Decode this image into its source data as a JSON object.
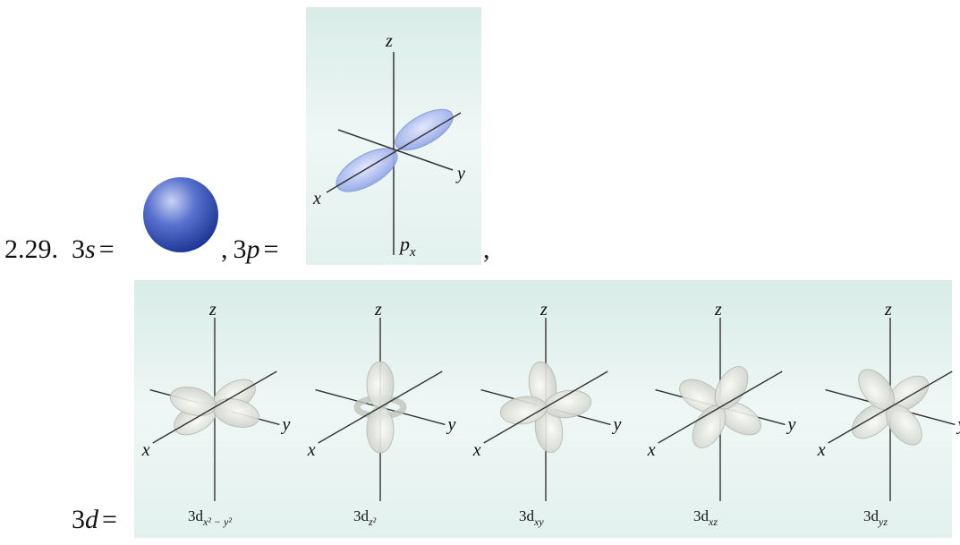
{
  "problem": {
    "number": "2.29."
  },
  "s_orbital": {
    "main": "3",
    "italic": "s",
    "equals": "="
  },
  "p_orbital": {
    "lead": ",",
    "main": "3",
    "italic": "p",
    "equals": "=",
    "trail": ",",
    "label": {
      "main": "p",
      "sub": "x"
    }
  },
  "d_orbital": {
    "main": "3",
    "italic": "d",
    "equals": "="
  },
  "axes": {
    "x": "x",
    "y": "y",
    "z": "z"
  },
  "d_panels": [
    {
      "main": "3d",
      "sub": "x² − y²"
    },
    {
      "main": "3d",
      "sub": "z²"
    },
    {
      "main": "3d",
      "sub": "xy"
    },
    {
      "main": "3d",
      "sub": "xz"
    },
    {
      "main": "3d",
      "sub": "yz"
    }
  ]
}
